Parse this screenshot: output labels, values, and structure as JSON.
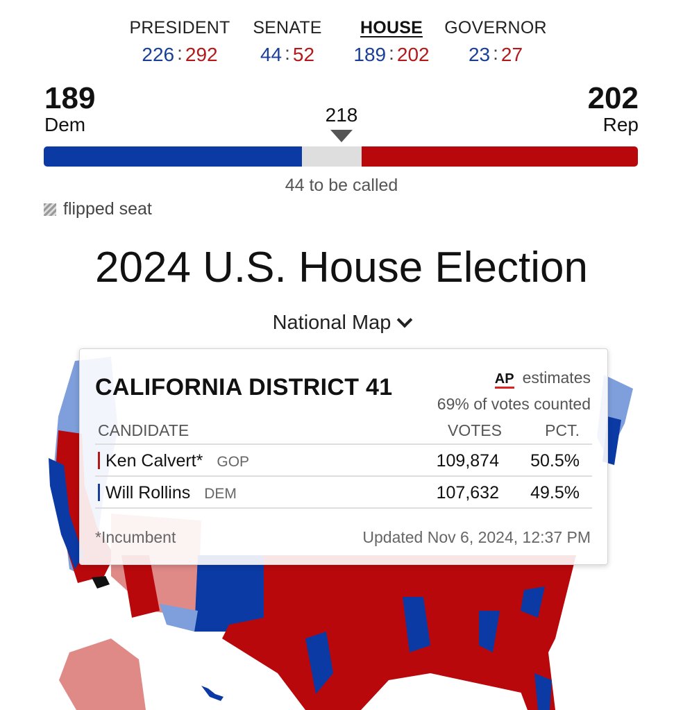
{
  "tabs": [
    {
      "label": "PRESIDENT",
      "dem": "226",
      "rep": "292",
      "active": false
    },
    {
      "label": "SENATE",
      "dem": "44",
      "rep": "52",
      "active": false
    },
    {
      "label": "HOUSE",
      "dem": "189",
      "rep": "202",
      "active": true
    },
    {
      "label": "GOVERNOR",
      "dem": "23",
      "rep": "27",
      "active": false
    }
  ],
  "tally": {
    "dem_count": "189",
    "dem_label": "Dem",
    "rep_count": "202",
    "rep_label": "Rep",
    "majority": "218",
    "seats": {
      "dem": 189,
      "uncalled": 44,
      "rep": 202
    },
    "to_be_called": "44 to be called",
    "flipped_legend": "flipped seat"
  },
  "page_title": "2024 U.S. House Election",
  "view_selector": "National Map",
  "popup": {
    "title": "CALIFORNIA DISTRICT 41",
    "source_logo": "AP",
    "source_text": "estimates",
    "counted": "69% of votes counted",
    "columns": [
      "CANDIDATE",
      "VOTES",
      "PCT."
    ],
    "rows": [
      {
        "name": "Ken Calvert*",
        "party": "GOP",
        "votes": "109,874",
        "pct": "50.5%",
        "color": "#b3191b"
      },
      {
        "name": "Will Rollins",
        "party": "DEM",
        "votes": "107,632",
        "pct": "49.5%",
        "color": "#1a3f99"
      }
    ],
    "footnote": "*Incumbent",
    "updated": "Updated Nov 6, 2024, 12:37 PM"
  },
  "colors": {
    "dem": "#0b3aa5",
    "rep": "#b8080b",
    "uncalled": "#dedede",
    "lean_dem": "#7f9fdc",
    "lean_rep": "#e08a88"
  }
}
